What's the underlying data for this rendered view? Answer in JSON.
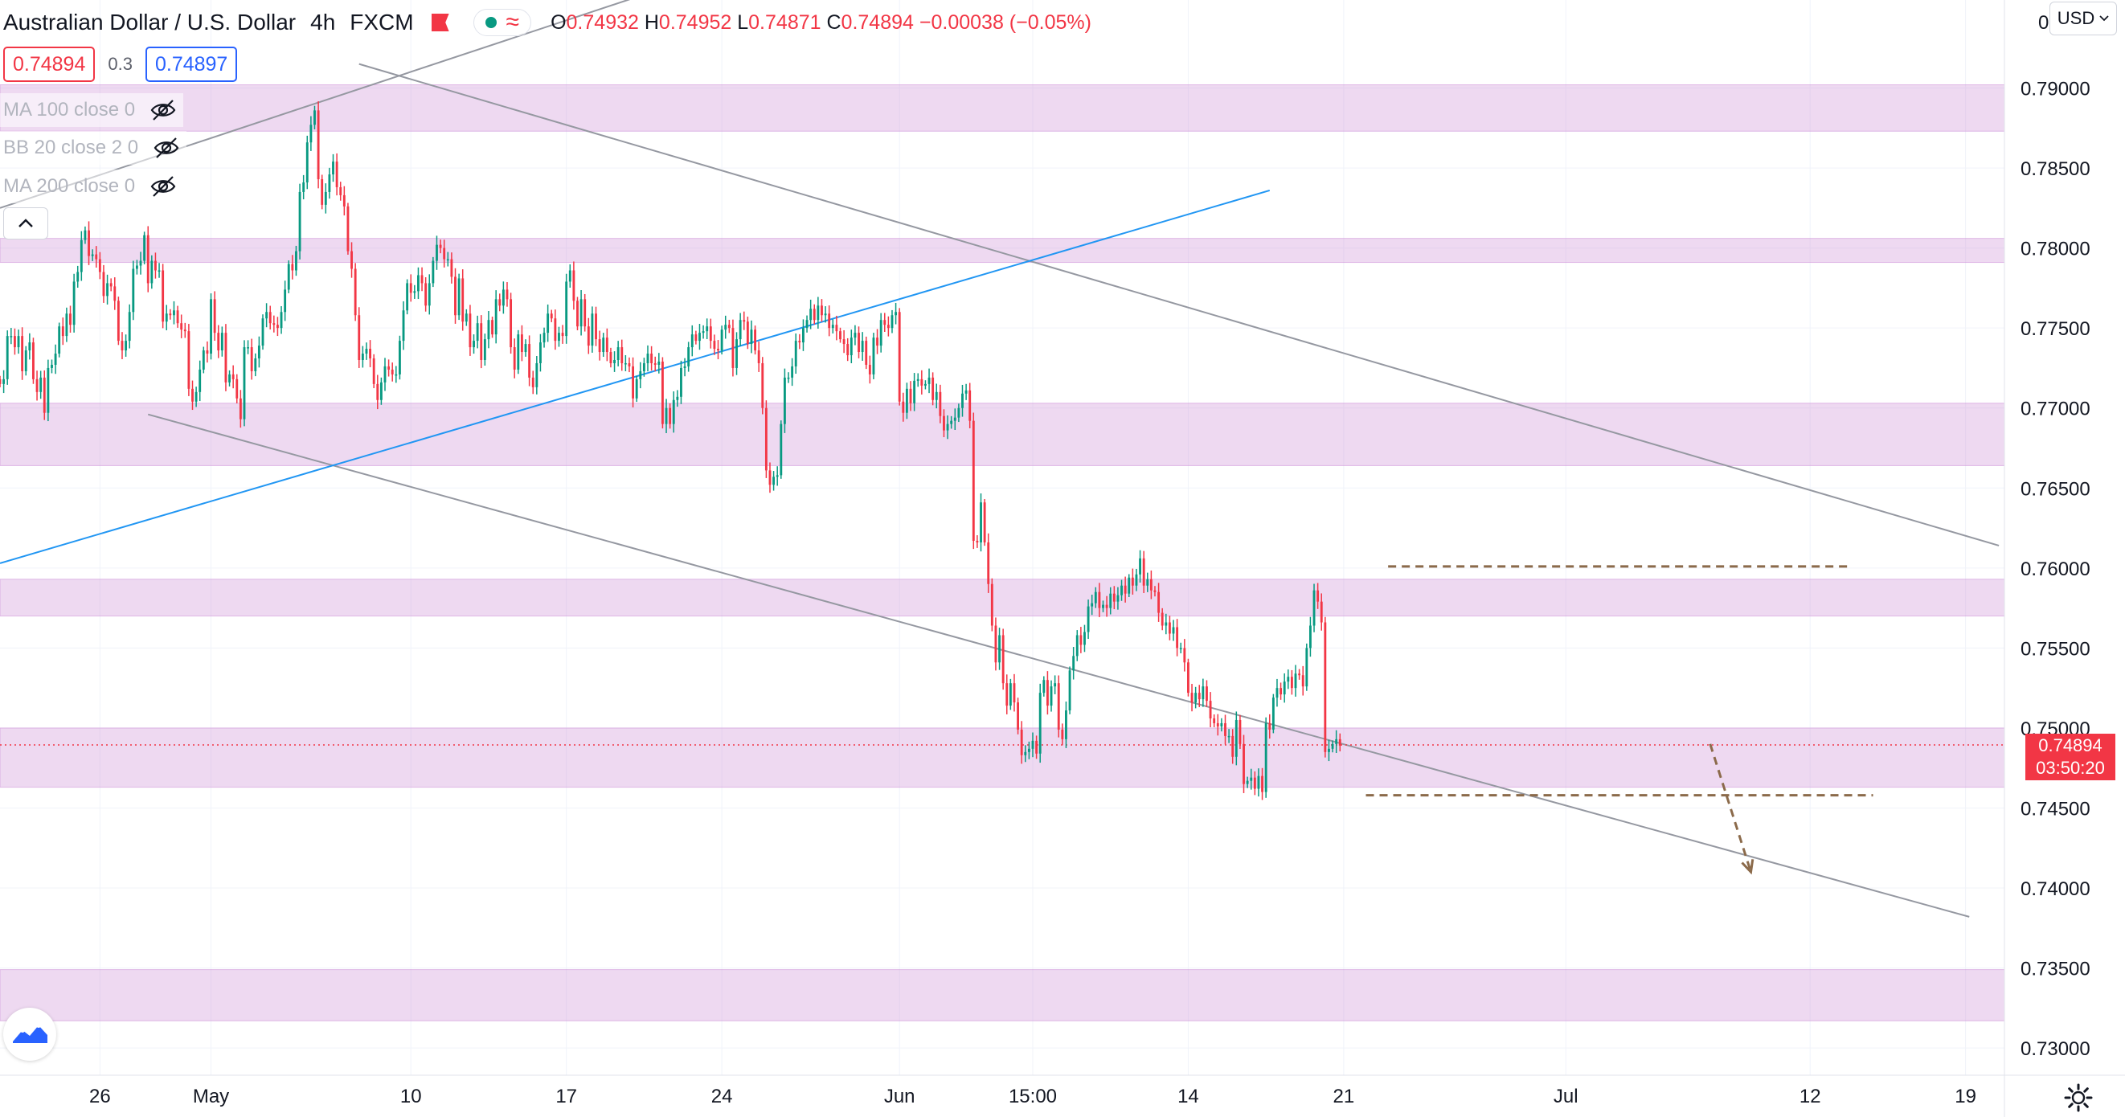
{
  "header": {
    "symbol_title": "Australian Dollar / U.S. Dollar",
    "interval": "4h",
    "exchange": "FXCM",
    "ohlc": {
      "o_label": "O",
      "o": "0.74932",
      "h_label": "H",
      "h": "0.74952",
      "l_label": "L",
      "l": "0.74871",
      "c_label": "C",
      "c": "0.74894",
      "change": "−0.00038 (−0.05%)"
    },
    "approx_symbol": "≈"
  },
  "quote": {
    "bid": "0.74894",
    "spread": "0.3",
    "ask": "0.74897"
  },
  "indicators": [
    {
      "label": "MA 100 close 0"
    },
    {
      "label": "BB 20 close 2 0"
    },
    {
      "label": "MA 200 close 0"
    }
  ],
  "currency_button": {
    "label": "USD"
  },
  "last_price": {
    "price": "0.74894",
    "countdown": "03:50:20",
    "value": 0.74894
  },
  "chart_data": {
    "type": "candlestick",
    "y_axis": {
      "ticks": [
        0.73,
        0.735,
        0.74,
        0.745,
        0.75,
        0.755,
        0.76,
        0.765,
        0.77,
        0.775,
        0.78,
        0.785,
        0.79
      ],
      "tick_labels": [
        "0.73000",
        "0.73500",
        "0.74000",
        "0.74500",
        "0.75000",
        "0.75500",
        "0.76000",
        "0.76500",
        "0.77000",
        "0.77500",
        "0.78000",
        "0.78500",
        "0.79000"
      ],
      "top_partial_label": "0",
      "range": [
        0.7283,
        0.7955
      ]
    },
    "x_axis": {
      "ticks": [
        {
          "label": "26",
          "date": "2021-04-26"
        },
        {
          "label": "May",
          "date": "2021-05-01"
        },
        {
          "label": "10",
          "date": "2021-05-10"
        },
        {
          "label": "17",
          "date": "2021-05-17"
        },
        {
          "label": "24",
          "date": "2021-05-24"
        },
        {
          "label": "Jun",
          "date": "2021-06-01"
        },
        {
          "label": "15:00",
          "date": "2021-06-07"
        },
        {
          "label": "14",
          "date": "2021-06-14"
        },
        {
          "label": "21",
          "date": "2021-06-21"
        },
        {
          "label": "Jul",
          "date": "2021-07-01"
        },
        {
          "label": "12",
          "date": "2021-07-12"
        },
        {
          "label": "19",
          "date": "2021-07-19"
        }
      ],
      "range": [
        "2021-04-21T12:00",
        "2021-07-20T18:00"
      ]
    },
    "zones": [
      [
        0.7873,
        0.7902
      ],
      [
        0.7791,
        0.7806
      ],
      [
        0.7664,
        0.7703
      ],
      [
        0.757,
        0.7593
      ],
      [
        0.7463,
        0.75
      ],
      [
        0.7317,
        0.7349
      ]
    ],
    "trendlines": [
      {
        "from": [
          "2021-04-21T12:00",
          0.7825
        ],
        "to": [
          "2021-05-21T12:00",
          0.7963
        ],
        "style": "gray"
      },
      {
        "from": [
          "2021-05-07T16:00",
          0.7915
        ],
        "to": [
          "2021-07-20T12:00",
          0.7614
        ],
        "style": "gray"
      },
      {
        "from": [
          "2021-04-28T04:00",
          0.7696
        ],
        "to": [
          "2021-07-19T04:00",
          0.7382
        ],
        "style": "gray"
      },
      {
        "from": [
          "2021-04-21T12:00",
          0.7603
        ],
        "to": [
          "2021-06-17T16:00",
          0.7836
        ],
        "style": "blue"
      },
      {
        "from": [
          "2021-06-23T00:00",
          0.7601
        ],
        "to": [
          "2021-07-13T20:00",
          0.7601
        ],
        "style": "dashed"
      },
      {
        "from": [
          "2021-06-22T00:00",
          0.7458
        ],
        "to": [
          "2021-07-14T20:00",
          0.7458
        ],
        "style": "dashed"
      },
      {
        "from": [
          "2021-07-07T12:00",
          0.749
        ],
        "to": [
          "2021-07-09T08:00",
          0.741
        ],
        "style": "dashed-arrow"
      }
    ],
    "candles_start": "2021-04-21T12:00",
    "candles_interval_hours": 4,
    "closes": [
      0.7715,
      0.7718,
      0.7745,
      0.7745,
      0.7738,
      0.7745,
      0.7723,
      0.7736,
      0.7741,
      0.7718,
      0.771,
      0.7719,
      0.7697,
      0.7725,
      0.7727,
      0.7734,
      0.7751,
      0.7745,
      0.7759,
      0.7752,
      0.7779,
      0.7785,
      0.7805,
      0.7811,
      0.7795,
      0.7796,
      0.7793,
      0.7785,
      0.777,
      0.7778,
      0.7776,
      0.7767,
      0.7742,
      0.7736,
      0.7742,
      0.776,
      0.7787,
      0.7789,
      0.7792,
      0.7808,
      0.7778,
      0.7792,
      0.7786,
      0.7786,
      0.7754,
      0.7759,
      0.7758,
      0.7761,
      0.7753,
      0.7749,
      0.7748,
      0.7712,
      0.7704,
      0.771,
      0.7724,
      0.7736,
      0.7734,
      0.7768,
      0.7747,
      0.7736,
      0.7747,
      0.7716,
      0.7721,
      0.7718,
      0.7706,
      0.7693,
      0.7738,
      0.7738,
      0.7723,
      0.7731,
      0.7739,
      0.7756,
      0.776,
      0.7753,
      0.7752,
      0.775,
      0.776,
      0.7774,
      0.779,
      0.7786,
      0.7798,
      0.7835,
      0.7841,
      0.7866,
      0.7877,
      0.7886,
      0.7843,
      0.7827,
      0.7835,
      0.7846,
      0.7854,
      0.7838,
      0.7833,
      0.7826,
      0.7798,
      0.7787,
      0.7758,
      0.773,
      0.7734,
      0.7737,
      0.7731,
      0.7715,
      0.7705,
      0.7716,
      0.7726,
      0.7724,
      0.7721,
      0.7721,
      0.7742,
      0.7761,
      0.7778,
      0.7772,
      0.7773,
      0.7783,
      0.7778,
      0.7764,
      0.7778,
      0.7792,
      0.7802,
      0.78,
      0.7793,
      0.7793,
      0.7782,
      0.7758,
      0.7781,
      0.7754,
      0.7759,
      0.7738,
      0.7742,
      0.7753,
      0.773,
      0.7743,
      0.7755,
      0.7746,
      0.7768,
      0.7764,
      0.7774,
      0.7768,
      0.7738,
      0.7724,
      0.7746,
      0.7735,
      0.774,
      0.7719,
      0.7713,
      0.7728,
      0.7741,
      0.7747,
      0.7759,
      0.7756,
      0.7742,
      0.7747,
      0.7745,
      0.7779,
      0.7786,
      0.7767,
      0.7751,
      0.7768,
      0.7751,
      0.7739,
      0.7759,
      0.7743,
      0.7735,
      0.7744,
      0.7735,
      0.7728,
      0.773,
      0.7738,
      0.7728,
      0.7728,
      0.7726,
      0.7706,
      0.7718,
      0.7723,
      0.7728,
      0.7734,
      0.7728,
      0.7727,
      0.7729,
      0.769,
      0.77,
      0.769,
      0.7705,
      0.7707,
      0.7725,
      0.7726,
      0.7738,
      0.7746,
      0.7742,
      0.7747,
      0.7748,
      0.7751,
      0.7742,
      0.7737,
      0.7736,
      0.7749,
      0.7752,
      0.775,
      0.7725,
      0.7743,
      0.7755,
      0.7754,
      0.774,
      0.7749,
      0.7736,
      0.7728,
      0.77,
      0.7661,
      0.7652,
      0.7657,
      0.7658,
      0.769,
      0.7719,
      0.7719,
      0.7726,
      0.7742,
      0.7741,
      0.775,
      0.7755,
      0.7762,
      0.7755,
      0.7764,
      0.7758,
      0.7759,
      0.775,
      0.7752,
      0.7748,
      0.7743,
      0.774,
      0.7733,
      0.7744,
      0.7747,
      0.7735,
      0.7742,
      0.7727,
      0.7721,
      0.7744,
      0.7739,
      0.7755,
      0.7752,
      0.775,
      0.7758,
      0.776,
      0.7704,
      0.7697,
      0.7712,
      0.7703,
      0.7717,
      0.7718,
      0.7714,
      0.7715,
      0.7719,
      0.7705,
      0.771,
      0.7695,
      0.7686,
      0.769,
      0.7692,
      0.7694,
      0.77,
      0.7709,
      0.7711,
      0.7692,
      0.7617,
      0.7616,
      0.7641,
      0.7616,
      0.759,
      0.7564,
      0.7541,
      0.7558,
      0.7528,
      0.7514,
      0.7528,
      0.7516,
      0.7499,
      0.7483,
      0.7485,
      0.7487,
      0.7492,
      0.7484,
      0.7522,
      0.753,
      0.7514,
      0.7526,
      0.7528,
      0.7499,
      0.7493,
      0.7511,
      0.7536,
      0.7545,
      0.7558,
      0.7552,
      0.756,
      0.7576,
      0.7578,
      0.7585,
      0.7575,
      0.7577,
      0.7575,
      0.7584,
      0.7579,
      0.7583,
      0.7589,
      0.7584,
      0.7594,
      0.7589,
      0.7596,
      0.7606,
      0.7589,
      0.7593,
      0.7586,
      0.7585,
      0.7572,
      0.7564,
      0.7566,
      0.7559,
      0.7563,
      0.755,
      0.755,
      0.7541,
      0.7522,
      0.7516,
      0.7522,
      0.7518,
      0.7526,
      0.7517,
      0.7506,
      0.7503,
      0.7501,
      0.7503,
      0.7495,
      0.7495,
      0.7482,
      0.7505,
      0.749,
      0.7465,
      0.7467,
      0.7469,
      0.7462,
      0.747,
      0.746,
      0.7503,
      0.7499,
      0.7519,
      0.7525,
      0.7521,
      0.7529,
      0.7532,
      0.7525,
      0.7534,
      0.7533,
      0.7526,
      0.755,
      0.7564,
      0.7586,
      0.7579,
      0.7566,
      0.7485,
      0.7487,
      0.749,
      0.7493,
      0.7489
    ]
  }
}
